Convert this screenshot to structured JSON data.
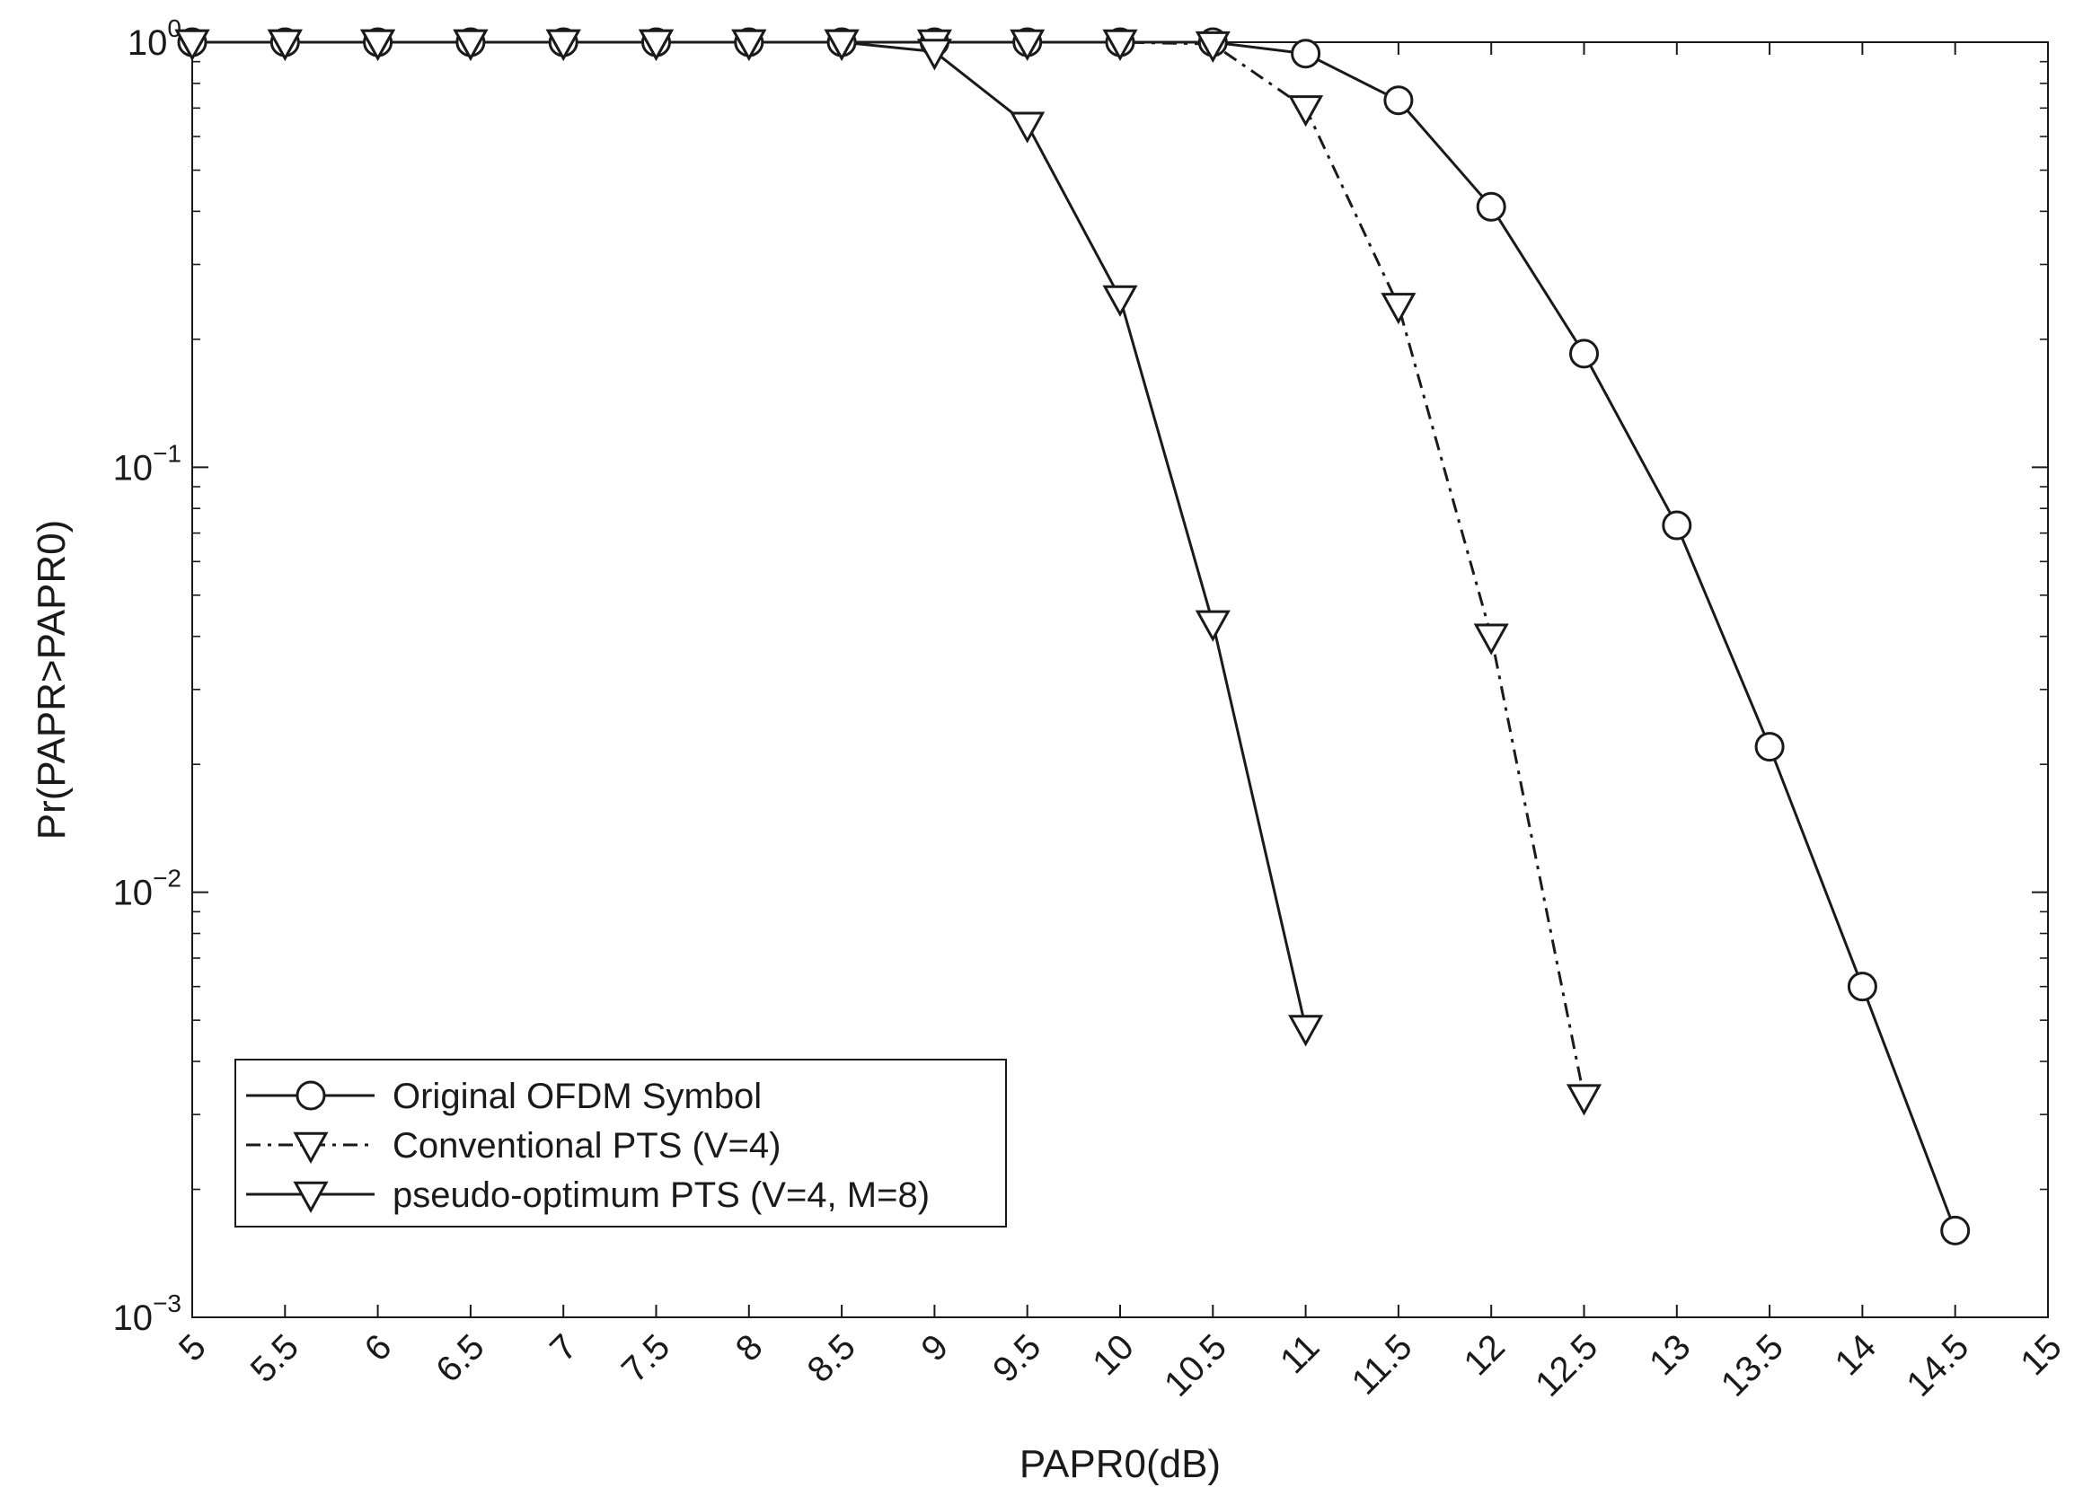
{
  "chart_data": {
    "type": "line",
    "xlabel": "PAPR0(dB)",
    "ylabel": "Pr(PAPR>PAPR0)",
    "xlim": [
      5,
      15
    ],
    "ylim": [
      0.001,
      1
    ],
    "yscale": "log",
    "grid": false,
    "legend_position": "bottom-left",
    "x_ticks": [
      "5",
      "5.5",
      "6",
      "6.5",
      "7",
      "7.5",
      "8",
      "8.5",
      "9",
      "9.5",
      "10",
      "10.5",
      "11",
      "11.5",
      "12",
      "12.5",
      "13",
      "13.5",
      "14",
      "14.5",
      "15"
    ],
    "y_ticks": [
      {
        "base": "10",
        "exp": "0",
        "value": 1
      },
      {
        "base": "10",
        "exp": "−1",
        "value": 0.1
      },
      {
        "base": "10",
        "exp": "−2",
        "value": 0.01
      },
      {
        "base": "10",
        "exp": "−3",
        "value": 0.001
      }
    ],
    "series": [
      {
        "name": "Original OFDM Symbol",
        "marker": "circle",
        "line": "solid",
        "x": [
          5,
          5.5,
          6,
          6.5,
          7,
          7.5,
          8,
          8.5,
          9,
          9.5,
          10,
          10.5,
          11,
          11.5,
          12,
          12.5,
          13,
          13.5,
          14,
          14.5
        ],
        "y": [
          1,
          1,
          1,
          1,
          1,
          1,
          1,
          1,
          1,
          1,
          1,
          1,
          0.94,
          0.73,
          0.41,
          0.185,
          0.073,
          0.022,
          0.006,
          0.0016
        ]
      },
      {
        "name": "Conventional PTS (V=4)",
        "marker": "triangle-down",
        "line": "dashdot",
        "x": [
          5,
          5.5,
          6,
          6.5,
          7,
          7.5,
          8,
          8.5,
          9,
          9.5,
          10,
          10.5,
          11,
          11.5,
          12,
          12.5
        ],
        "y": [
          1,
          1,
          1,
          1,
          1,
          1,
          1,
          1,
          1,
          1,
          1,
          0.99,
          0.7,
          0.24,
          0.04,
          0.0033
        ]
      },
      {
        "name": "pseudo-optimum PTS (V=4, M=8)",
        "marker": "triangle-down",
        "line": "solid",
        "x": [
          5,
          5.5,
          6,
          6.5,
          7,
          7.5,
          8,
          8.5,
          9,
          9.5,
          10,
          10.5,
          11
        ],
        "y": [
          1,
          1,
          1,
          1,
          1,
          1,
          1,
          1,
          0.95,
          0.64,
          0.25,
          0.043,
          0.0048
        ]
      }
    ]
  }
}
